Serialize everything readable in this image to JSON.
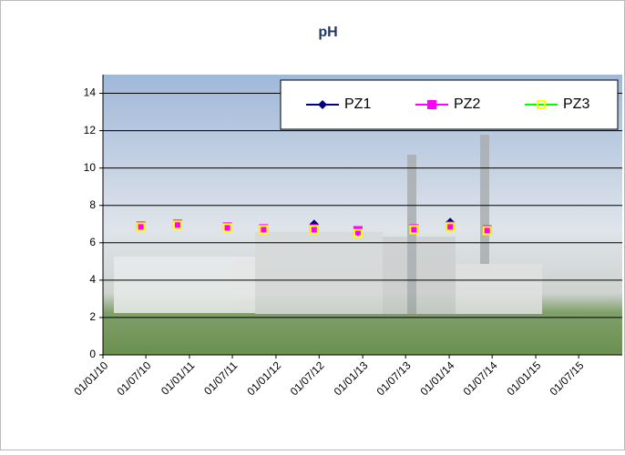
{
  "chart_data": {
    "type": "line",
    "title": "pH",
    "x": [
      "2010-06-10",
      "2010-11-12",
      "2011-06-10",
      "2011-11-10",
      "2012-06-10",
      "2012-12-12",
      "2013-08-05",
      "2014-01-05",
      "2014-06-10"
    ],
    "xlim": [
      "2010-01-01",
      "2016-01-01"
    ],
    "xticks": [
      {
        "value": "2010-01-01",
        "label": "01/01/10"
      },
      {
        "value": "2010-07-01",
        "label": "01/07/10"
      },
      {
        "value": "2011-01-01",
        "label": "01/01/11"
      },
      {
        "value": "2011-07-01",
        "label": "01/07/11"
      },
      {
        "value": "2012-01-01",
        "label": "01/01/12"
      },
      {
        "value": "2012-07-01",
        "label": "01/07/12"
      },
      {
        "value": "2013-01-01",
        "label": "01/01/13"
      },
      {
        "value": "2013-07-01",
        "label": "01/07/13"
      },
      {
        "value": "2014-01-01",
        "label": "01/01/14"
      },
      {
        "value": "2014-07-01",
        "label": "01/07/14"
      },
      {
        "value": "2015-01-01",
        "label": "01/01/15"
      },
      {
        "value": "2015-07-01",
        "label": "01/07/15"
      }
    ],
    "ylim": [
      0,
      15
    ],
    "yticks": [
      0,
      2,
      4,
      6,
      8,
      10,
      12,
      14
    ],
    "grid": true,
    "legend": "top-right",
    "series": [
      {
        "name": "PZ1",
        "color": "#000080",
        "marker": "diamond",
        "values": [
          6.9,
          7.0,
          6.85,
          6.75,
          7.0,
          6.6,
          6.75,
          7.1,
          6.7
        ]
      },
      {
        "name": "PZ2",
        "color": "#ff00ff",
        "marker": "square",
        "values": [
          6.9,
          7.0,
          6.85,
          6.75,
          6.75,
          6.65,
          6.75,
          6.9,
          6.7
        ]
      },
      {
        "name": "PZ3",
        "color": "#ffff00",
        "marker": "hollow-square",
        "values": [
          6.85,
          6.95,
          6.8,
          6.7,
          6.7,
          6.5,
          6.7,
          6.85,
          6.65
        ]
      }
    ]
  }
}
